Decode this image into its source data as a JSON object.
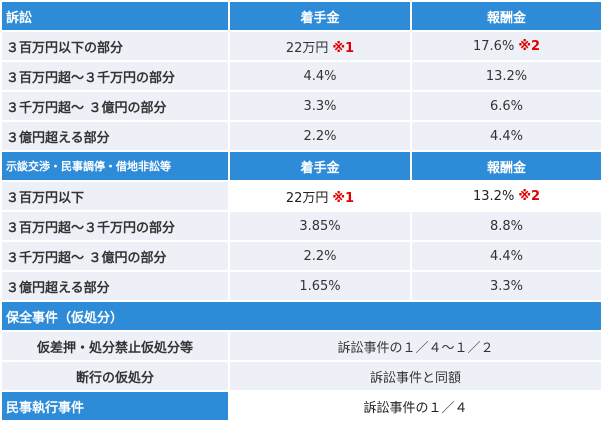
{
  "table1": {
    "header": [
      "訴訟",
      "着手金",
      "報酬金"
    ],
    "rows": [
      [
        "３百万円以下の部分",
        "22万円",
        "※1",
        "17.6%",
        "※2"
      ],
      [
        "３百万円超～３千万円の部分",
        "4.4%",
        "13.2%"
      ],
      [
        "３千万円超～ ３億円の部分",
        "3.3%",
        "6.6%"
      ],
      [
        "３億円超える部分",
        "2.2%",
        "4.4%"
      ]
    ]
  },
  "table2": {
    "header": [
      "示談交渉・民事調停・借地非訟等",
      "着手金",
      "報酬金"
    ],
    "rows": [
      [
        "３百万円以下",
        "22万円",
        "※1",
        "13.2%",
        "※2"
      ],
      [
        "３百万円超～３千万円の部分",
        "3.85%",
        "8.8%"
      ],
      [
        "３千万円超～ ３億円の部分",
        "2.2%",
        "4.4%"
      ],
      [
        "３億円超える部分",
        "1.65%",
        "3.3%"
      ]
    ]
  },
  "preservation": {
    "title": "保全事件（仮処分）",
    "rows": [
      [
        "仮差押・処分禁止仮処分等",
        "訴訟事件の１／４～１／２"
      ],
      [
        "断行の仮処分",
        "訴訟事件と同額"
      ]
    ]
  },
  "execution": [
    "民事執行事件",
    "訴訟事件の１／４"
  ]
}
